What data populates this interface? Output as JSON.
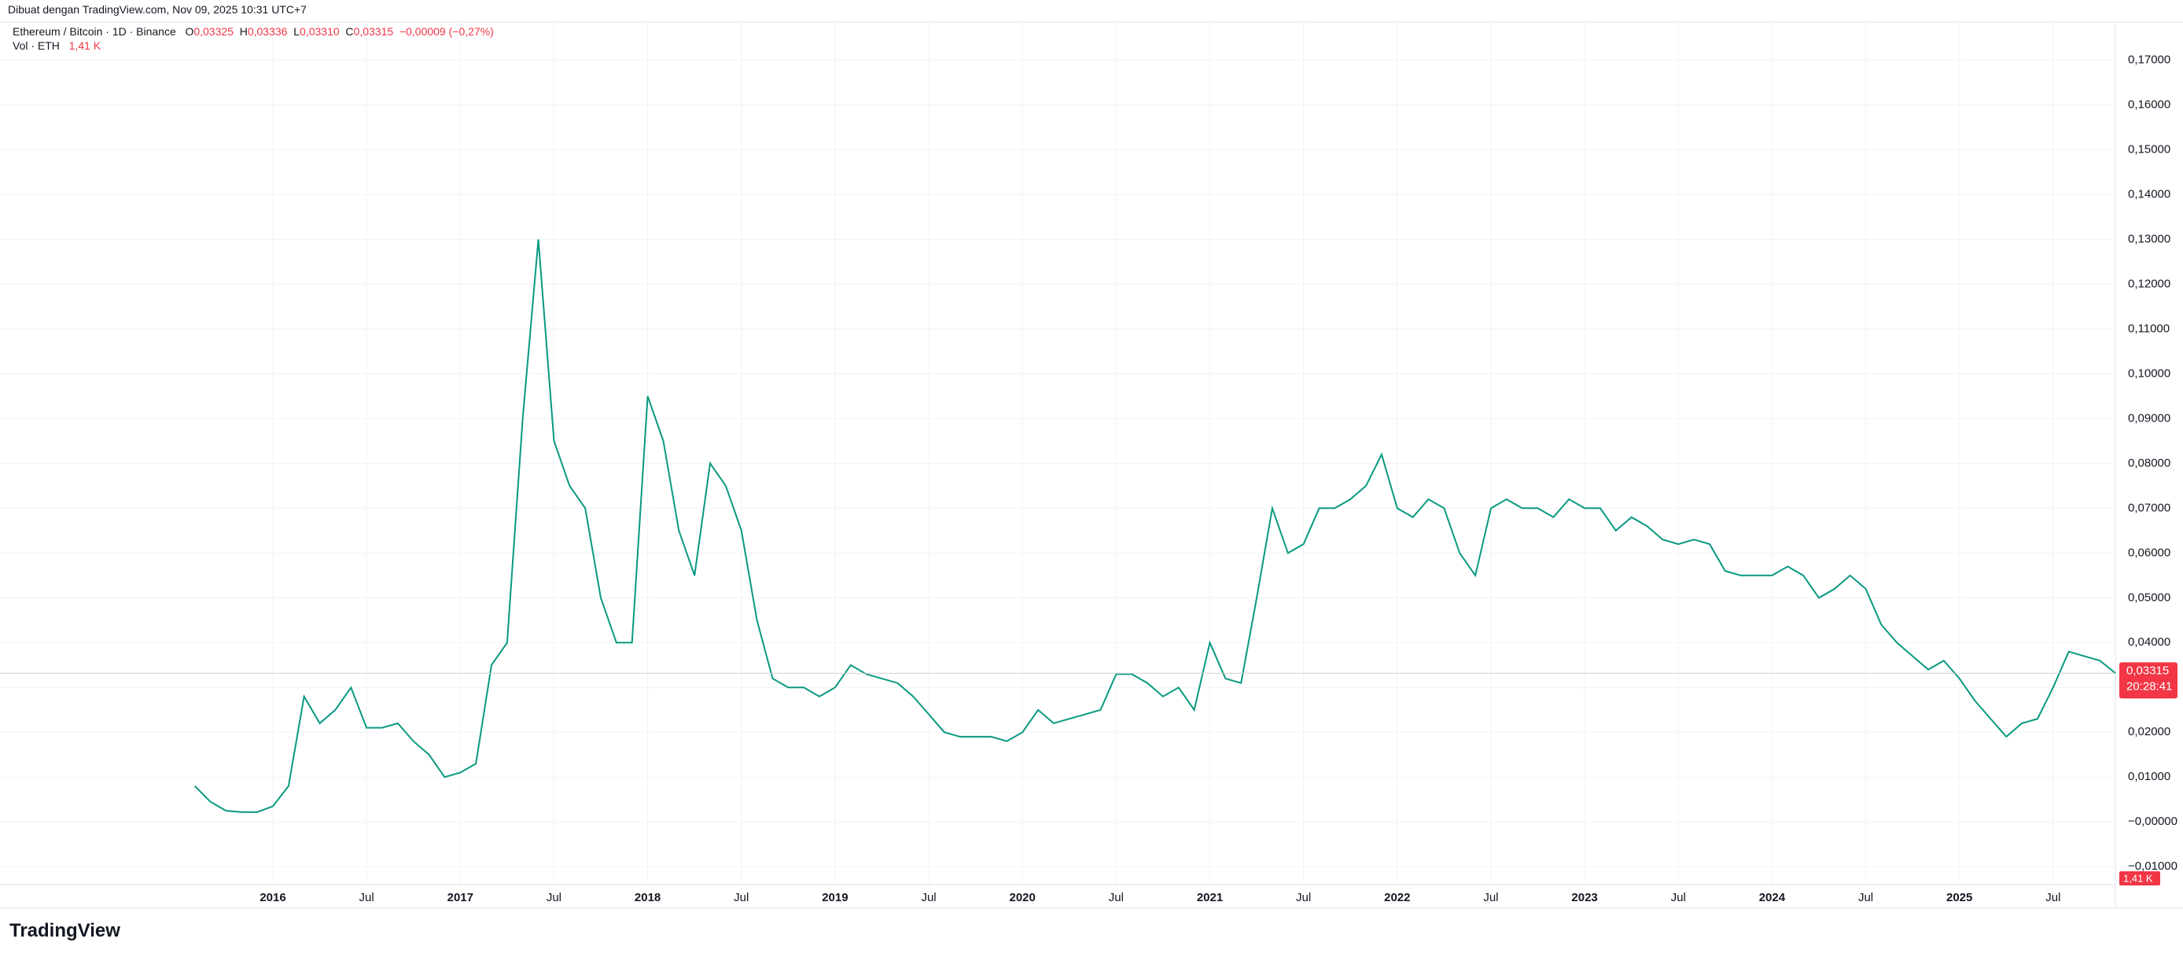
{
  "header": {
    "credit": "Dibuat dengan TradingView.com, Nov 09, 2025 10:31 UTC+7",
    "brand": "TradingView"
  },
  "legend": {
    "symbol": "Ethereum / Bitcoin · 1D · Binance",
    "open_label": "O",
    "open": "0,03325",
    "high_label": "H",
    "high": "0,03336",
    "low_label": "L",
    "low": "0,03310",
    "close_label": "C",
    "close": "0,03315",
    "change": "−0,00009 (−0,27%)",
    "volume_label": "Vol · ETH",
    "volume": "1,41 K"
  },
  "chart_data": {
    "type": "line",
    "color": "#089981",
    "x": [
      "2015-08",
      "2015-09",
      "2015-10",
      "2015-11",
      "2015-12",
      "2016-01",
      "2016-02",
      "2016-03",
      "2016-04",
      "2016-05",
      "2016-06",
      "2016-07",
      "2016-08",
      "2016-09",
      "2016-10",
      "2016-11",
      "2016-12",
      "2017-01",
      "2017-02",
      "2017-03",
      "2017-04",
      "2017-05",
      "2017-06",
      "2017-07",
      "2017-08",
      "2017-09",
      "2017-10",
      "2017-11",
      "2017-12",
      "2018-01",
      "2018-02",
      "2018-03",
      "2018-04",
      "2018-05",
      "2018-06",
      "2018-07",
      "2018-08",
      "2018-09",
      "2018-10",
      "2018-11",
      "2018-12",
      "2019-01",
      "2019-02",
      "2019-03",
      "2019-04",
      "2019-05",
      "2019-06",
      "2019-07",
      "2019-08",
      "2019-09",
      "2019-10",
      "2019-11",
      "2019-12",
      "2020-01",
      "2020-02",
      "2020-03",
      "2020-04",
      "2020-05",
      "2020-06",
      "2020-07",
      "2020-08",
      "2020-09",
      "2020-10",
      "2020-11",
      "2020-12",
      "2021-01",
      "2021-02",
      "2021-03",
      "2021-04",
      "2021-05",
      "2021-06",
      "2021-07",
      "2021-08",
      "2021-09",
      "2021-10",
      "2021-11",
      "2021-12",
      "2022-01",
      "2022-02",
      "2022-03",
      "2022-04",
      "2022-05",
      "2022-06",
      "2022-07",
      "2022-08",
      "2022-09",
      "2022-10",
      "2022-11",
      "2022-12",
      "2023-01",
      "2023-02",
      "2023-03",
      "2023-04",
      "2023-05",
      "2023-06",
      "2023-07",
      "2023-08",
      "2023-09",
      "2023-10",
      "2023-11",
      "2023-12",
      "2024-01",
      "2024-02",
      "2024-03",
      "2024-04",
      "2024-05",
      "2024-06",
      "2024-07",
      "2024-08",
      "2024-09",
      "2024-10",
      "2024-11",
      "2024-12",
      "2025-01",
      "2025-02",
      "2025-03",
      "2025-04",
      "2025-05",
      "2025-06",
      "2025-07",
      "2025-08",
      "2025-09",
      "2025-10",
      "2025-11"
    ],
    "values": [
      0.008,
      0.0045,
      0.0025,
      0.0022,
      0.0022,
      0.0035,
      0.008,
      0.028,
      0.022,
      0.025,
      0.03,
      0.021,
      0.021,
      0.022,
      0.018,
      0.015,
      0.01,
      0.011,
      0.013,
      0.035,
      0.04,
      0.09,
      0.13,
      0.085,
      0.075,
      0.07,
      0.05,
      0.04,
      0.04,
      0.095,
      0.085,
      0.065,
      0.055,
      0.08,
      0.075,
      0.065,
      0.045,
      0.032,
      0.03,
      0.03,
      0.028,
      0.03,
      0.035,
      0.033,
      0.032,
      0.031,
      0.028,
      0.024,
      0.02,
      0.019,
      0.019,
      0.019,
      0.018,
      0.02,
      0.025,
      0.022,
      0.023,
      0.024,
      0.025,
      0.033,
      0.033,
      0.031,
      0.028,
      0.03,
      0.025,
      0.04,
      0.032,
      0.031,
      0.05,
      0.07,
      0.06,
      0.062,
      0.07,
      0.07,
      0.072,
      0.075,
      0.082,
      0.07,
      0.068,
      0.072,
      0.07,
      0.06,
      0.055,
      0.07,
      0.072,
      0.07,
      0.07,
      0.068,
      0.072,
      0.07,
      0.07,
      0.065,
      0.068,
      0.066,
      0.063,
      0.062,
      0.063,
      0.062,
      0.056,
      0.055,
      0.055,
      0.055,
      0.057,
      0.055,
      0.05,
      0.052,
      0.055,
      0.052,
      0.044,
      0.04,
      0.037,
      0.034,
      0.036,
      0.032,
      0.027,
      0.023,
      0.019,
      0.022,
      0.023,
      0.03,
      0.038,
      0.037,
      0.036,
      0.03315
    ],
    "ylim": [
      -0.014,
      0.1785
    ],
    "yticks": [
      {
        "value": -0.01,
        "label": "−0,01000"
      },
      {
        "value": 0,
        "label": "−0,00000"
      },
      {
        "value": 0.01,
        "label": "0,01000"
      },
      {
        "value": 0.02,
        "label": "0,02000"
      },
      {
        "value": 0.03,
        "label": "0,03000"
      },
      {
        "value": 0.04,
        "label": "0,04000"
      },
      {
        "value": 0.05,
        "label": "0,05000"
      },
      {
        "value": 0.06,
        "label": "0,06000"
      },
      {
        "value": 0.07,
        "label": "0,07000"
      },
      {
        "value": 0.08,
        "label": "0,08000"
      },
      {
        "value": 0.09,
        "label": "0,09000"
      },
      {
        "value": 0.1,
        "label": "0,10000"
      },
      {
        "value": 0.11,
        "label": "0,11000"
      },
      {
        "value": 0.12,
        "label": "0,12000"
      },
      {
        "value": 0.13,
        "label": "0,13000"
      },
      {
        "value": 0.14,
        "label": "0,14000"
      },
      {
        "value": 0.15,
        "label": "0,15000"
      },
      {
        "value": 0.16,
        "label": "0,16000"
      },
      {
        "value": 0.17,
        "label": "0,17000"
      }
    ],
    "xticks": [
      {
        "value": "2016-01",
        "label": "2016"
      },
      {
        "value": "2016-07",
        "label": "Jul"
      },
      {
        "value": "2017-01",
        "label": "2017"
      },
      {
        "value": "2017-07",
        "label": "Jul"
      },
      {
        "value": "2018-01",
        "label": "2018"
      },
      {
        "value": "2018-07",
        "label": "Jul"
      },
      {
        "value": "2019-01",
        "label": "2019"
      },
      {
        "value": "2019-07",
        "label": "Jul"
      },
      {
        "value": "2020-01",
        "label": "2020"
      },
      {
        "value": "2020-07",
        "label": "Jul"
      },
      {
        "value": "2021-01",
        "label": "2021"
      },
      {
        "value": "2021-07",
        "label": "Jul"
      },
      {
        "value": "2022-01",
        "label": "2022"
      },
      {
        "value": "2022-07",
        "label": "Jul"
      },
      {
        "value": "2023-01",
        "label": "2023"
      },
      {
        "value": "2023-07",
        "label": "Jul"
      },
      {
        "value": "2024-01",
        "label": "2024"
      },
      {
        "value": "2024-07",
        "label": "Jul"
      },
      {
        "value": "2025-01",
        "label": "2025"
      },
      {
        "value": "2025-07",
        "label": "Jul"
      }
    ],
    "grid": true,
    "last_price": {
      "value": 0.03315,
      "label": "0,03315",
      "color": "#f23645"
    },
    "countdown": "20:28:41"
  }
}
